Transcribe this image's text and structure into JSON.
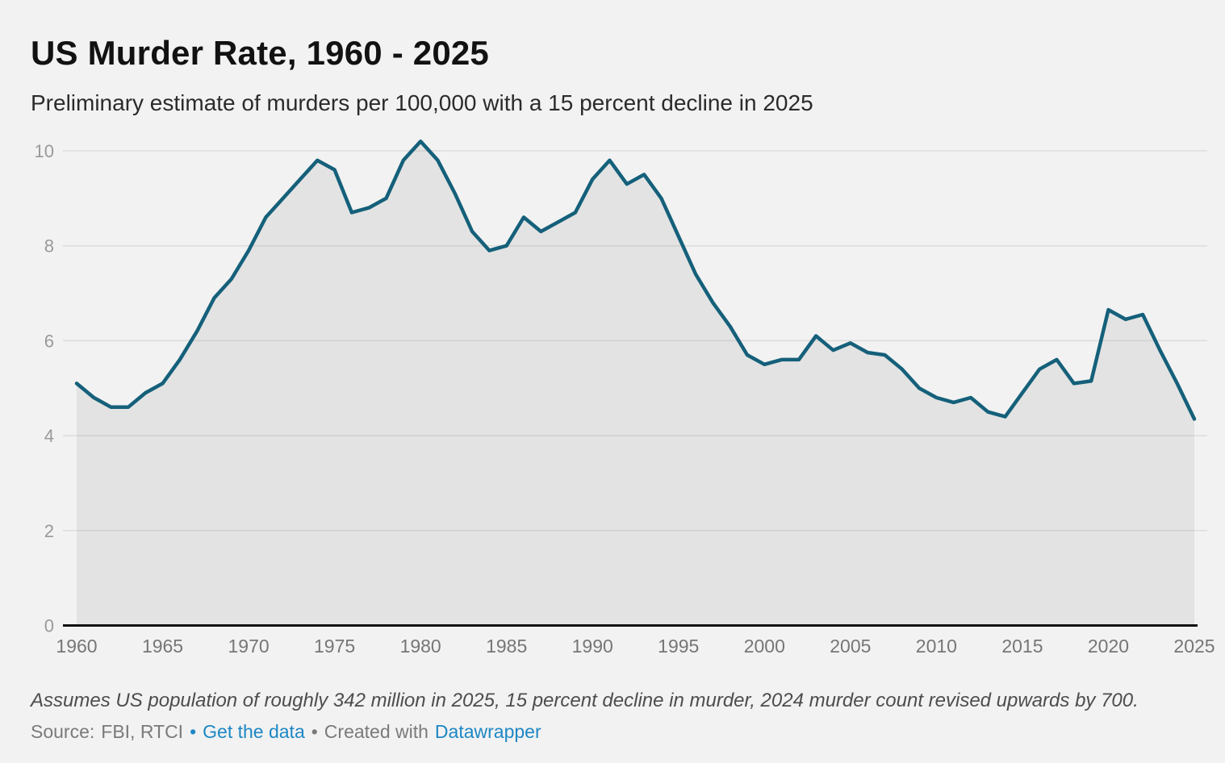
{
  "header": {
    "title": "US Murder Rate, 1960 - 2025",
    "subtitle": "Preliminary estimate of murders per 100,000 with a 15 percent decline in 2025"
  },
  "chart_data": {
    "type": "area",
    "title": "US Murder Rate, 1960 - 2025",
    "subtitle": "Preliminary estimate of murders per 100,000 with a 15 percent decline in 2025",
    "xlabel": "",
    "ylabel": "",
    "x_min": 1960,
    "x_max": 2025,
    "ylim": [
      0,
      10
    ],
    "grid": "horizontal",
    "legend": "none",
    "x": [
      1960,
      1961,
      1962,
      1963,
      1964,
      1965,
      1966,
      1967,
      1968,
      1969,
      1970,
      1971,
      1972,
      1973,
      1974,
      1975,
      1976,
      1977,
      1978,
      1979,
      1980,
      1981,
      1982,
      1983,
      1984,
      1985,
      1986,
      1987,
      1988,
      1989,
      1990,
      1991,
      1992,
      1993,
      1994,
      1995,
      1996,
      1997,
      1998,
      1999,
      2000,
      2001,
      2002,
      2003,
      2004,
      2005,
      2006,
      2007,
      2008,
      2009,
      2010,
      2011,
      2012,
      2013,
      2014,
      2015,
      2016,
      2017,
      2018,
      2019,
      2020,
      2021,
      2022,
      2023,
      2024,
      2025
    ],
    "series": [
      {
        "name": "Murders per 100,000",
        "values": [
          5.1,
          4.8,
          4.6,
          4.6,
          4.9,
          5.1,
          5.6,
          6.2,
          6.9,
          7.3,
          7.9,
          8.6,
          9.0,
          9.4,
          9.8,
          9.6,
          8.7,
          8.8,
          9.0,
          9.8,
          10.2,
          9.8,
          9.1,
          8.3,
          7.9,
          8.0,
          8.6,
          8.3,
          8.5,
          8.7,
          9.4,
          9.8,
          9.3,
          9.5,
          9.0,
          8.2,
          7.4,
          6.8,
          6.3,
          5.7,
          5.5,
          5.6,
          5.6,
          6.1,
          5.8,
          5.95,
          5.75,
          5.7,
          5.4,
          5.0,
          4.8,
          4.7,
          4.8,
          4.5,
          4.4,
          4.9,
          5.4,
          5.6,
          5.1,
          5.15,
          6.65,
          6.45,
          6.55,
          5.8,
          5.1,
          4.35
        ]
      }
    ],
    "y_ticks": [
      0,
      2,
      4,
      6,
      8,
      10
    ],
    "y_tick_labels": [
      "0",
      "2",
      "4",
      "6",
      "8",
      "10"
    ],
    "x_ticks": [
      1960,
      1965,
      1970,
      1975,
      1980,
      1985,
      1990,
      1995,
      2000,
      2005,
      2010,
      2015,
      2020,
      2025
    ],
    "x_tick_labels": [
      "1960",
      "1965",
      "1970",
      "1975",
      "1980",
      "1985",
      "1990",
      "1995",
      "2000",
      "2005",
      "2010",
      "2015",
      "2020",
      "2025"
    ],
    "line_color": "#15607a",
    "area_color": "rgba(0,0,0,0.06)",
    "grid_color": "#dcdcdc",
    "axis_color": "#111111",
    "y_tick_color": "#999999",
    "x_tick_color": "#767676"
  },
  "footer": {
    "footnote": "Assumes US population of roughly 342 million in 2025, 15 percent decline in murder, 2024 murder count revised upwards by 700.",
    "source_label": "Source:",
    "source_names": "FBI, RTCI",
    "sep1": "•",
    "get_data_label": "Get the data",
    "sep2": "•",
    "created_with_label": "Created with",
    "datawrapper_label": "Datawrapper",
    "link_color": "#1d87c4"
  }
}
